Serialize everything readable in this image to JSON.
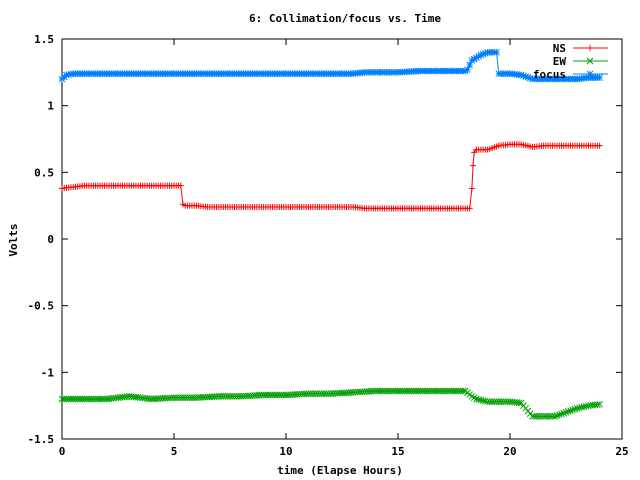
{
  "chart_data": {
    "type": "line",
    "title": "6: Collimation/focus vs. Time",
    "xlabel": "time (Elapse Hours)",
    "ylabel": "Volts",
    "xlim": [
      0,
      25
    ],
    "ylim": [
      -1.5,
      1.5
    ],
    "xticks": [
      0,
      5,
      10,
      15,
      20,
      25
    ],
    "yticks": [
      -1.5,
      -1,
      -0.5,
      0,
      0.5,
      1,
      1.5
    ],
    "xtick_labels": [
      "0",
      "5",
      "10",
      "15",
      "20",
      "25"
    ],
    "ytick_labels": [
      "-1.5",
      "-1",
      "-0.5",
      "0",
      "0.5",
      "1",
      "1.5"
    ],
    "grid": false,
    "legend_position": "top-right",
    "series": [
      {
        "name": "NS",
        "color": "#ff0000",
        "marker": "plus",
        "x": [
          0,
          0.5,
          1,
          1.5,
          2,
          2.5,
          3,
          3.5,
          4,
          4.5,
          5,
          5.3,
          5.4,
          5.5,
          6,
          6.5,
          7,
          8,
          9,
          10,
          11,
          12,
          13,
          13.5,
          14,
          15,
          16,
          17,
          18,
          18.2,
          18.3,
          18.35,
          18.4,
          18.5,
          18.7,
          19,
          19.5,
          20,
          20.5,
          21,
          21.5,
          22,
          22.5,
          23,
          23.5,
          24
        ],
        "y": [
          0.38,
          0.39,
          0.4,
          0.4,
          0.4,
          0.4,
          0.4,
          0.4,
          0.4,
          0.4,
          0.4,
          0.4,
          0.26,
          0.25,
          0.25,
          0.24,
          0.24,
          0.24,
          0.24,
          0.24,
          0.24,
          0.24,
          0.24,
          0.23,
          0.23,
          0.23,
          0.23,
          0.23,
          0.23,
          0.23,
          0.38,
          0.55,
          0.65,
          0.67,
          0.67,
          0.67,
          0.7,
          0.71,
          0.71,
          0.69,
          0.7,
          0.7,
          0.7,
          0.7,
          0.7,
          0.7
        ]
      },
      {
        "name": "EW",
        "color": "#00a000",
        "marker": "cross",
        "x": [
          0,
          1,
          2,
          2.5,
          3,
          3.5,
          4,
          5,
          6,
          7,
          8,
          9,
          10,
          11,
          12,
          13,
          14,
          15,
          16,
          17,
          18,
          18.3,
          18.5,
          19,
          19.5,
          20,
          20.5,
          21,
          21.5,
          22,
          22.5,
          23,
          23.5,
          24
        ],
        "y": [
          -1.2,
          -1.2,
          -1.2,
          -1.19,
          -1.18,
          -1.19,
          -1.2,
          -1.19,
          -1.19,
          -1.18,
          -1.18,
          -1.17,
          -1.17,
          -1.16,
          -1.16,
          -1.15,
          -1.14,
          -1.14,
          -1.14,
          -1.14,
          -1.14,
          -1.18,
          -1.2,
          -1.22,
          -1.22,
          -1.22,
          -1.23,
          -1.33,
          -1.33,
          -1.33,
          -1.3,
          -1.27,
          -1.25,
          -1.24
        ]
      },
      {
        "name": "focus",
        "color": "#0080ff",
        "marker": "star",
        "x": [
          0,
          0.2,
          0.5,
          1,
          2,
          3,
          4,
          5,
          6,
          7,
          8,
          9,
          10,
          11,
          12,
          13,
          13.5,
          14,
          15,
          16,
          17,
          18,
          18.1,
          18.3,
          18.5,
          18.7,
          19,
          19.4,
          19.5,
          20,
          20.5,
          21,
          21.5,
          22,
          22.5,
          23,
          23.5,
          24
        ],
        "y": [
          1.2,
          1.23,
          1.24,
          1.24,
          1.24,
          1.24,
          1.24,
          1.24,
          1.24,
          1.24,
          1.24,
          1.24,
          1.24,
          1.24,
          1.24,
          1.24,
          1.25,
          1.25,
          1.25,
          1.26,
          1.26,
          1.26,
          1.27,
          1.34,
          1.36,
          1.38,
          1.4,
          1.4,
          1.24,
          1.24,
          1.23,
          1.2,
          1.2,
          1.2,
          1.2,
          1.2,
          1.21,
          1.21
        ]
      }
    ]
  }
}
